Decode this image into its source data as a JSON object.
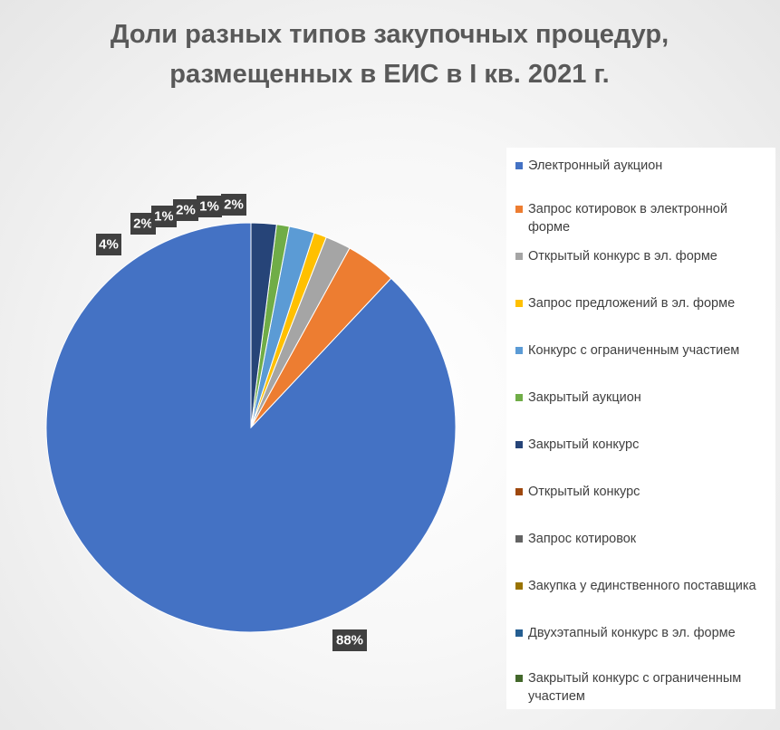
{
  "chart_data": {
    "type": "pie",
    "title": "Доли разных типов закупочных процедур, размещенных в ЕИС в I кв. 2021 г.",
    "title_lines": [
      "Доли разных типов закупочных процедур,",
      "размещенных в ЕИС в I кв. 2021 г."
    ],
    "legend_position": "right",
    "slices": [
      {
        "label": "Электронный аукцион",
        "value": 88,
        "display": "88%",
        "color": "#4472C4"
      },
      {
        "label": "Запрос котировок в электронной форме",
        "value": 4,
        "display": "4%",
        "color": "#ED7D31"
      },
      {
        "label": "Открытый конкурс в эл. форме",
        "value": 2,
        "display": "2%",
        "color": "#A5A5A5"
      },
      {
        "label": "Запрос предложений в эл. форме",
        "value": 1,
        "display": "1%",
        "color": "#FFC000"
      },
      {
        "label": "Конкурс с ограниченным участием",
        "value": 2,
        "display": "2%",
        "color": "#5B9BD5"
      },
      {
        "label": "Закрытый аукцион",
        "value": 1,
        "display": "1%",
        "color": "#70AD47"
      },
      {
        "label": "Закрытый конкурс",
        "value": 2,
        "display": "2%",
        "color": "#264478"
      },
      {
        "label": "Открытый конкурс",
        "value": 0,
        "display": "",
        "color": "#9E480E"
      },
      {
        "label": "Запрос котировок",
        "value": 0,
        "display": "",
        "color": "#636363"
      },
      {
        "label": "Закупка у единственного поставщика",
        "value": 0,
        "display": "",
        "color": "#997300"
      },
      {
        "label": "Двухэтапный конкурс в эл. форме",
        "value": 0,
        "display": "",
        "color": "#255E91"
      },
      {
        "label": "Закрытый конкурс с ограниченным участием",
        "value": 0,
        "display": "",
        "color": "#43682B"
      }
    ]
  }
}
